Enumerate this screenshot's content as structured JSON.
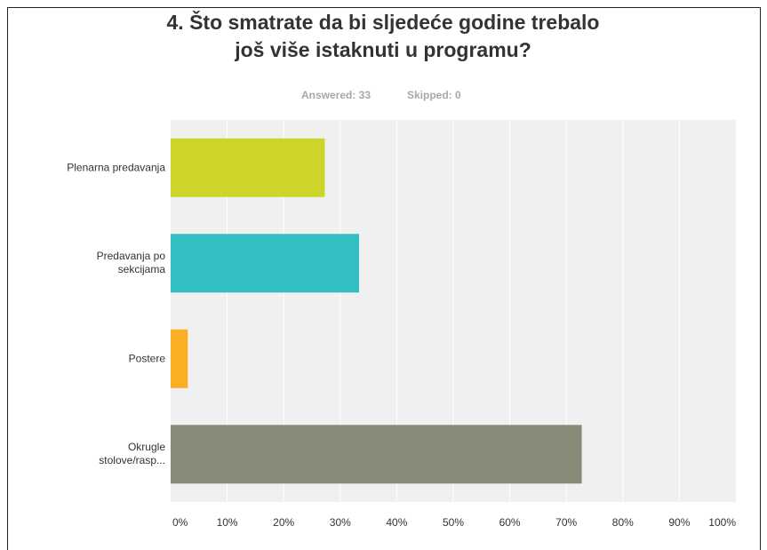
{
  "chart_data": {
    "type": "bar",
    "orientation": "horizontal",
    "title": "4. Što smatrate da bi sljedeće godine trebalo još više istaknuti u programu?",
    "answered": "Answered: 33",
    "skipped": "Skipped: 0",
    "categories": [
      "Plenarna predavanja",
      "Predavanja po sekcijama",
      "Postere",
      "Okrugle stolove/rasp..."
    ],
    "values": [
      27.27,
      33.33,
      3.03,
      72.73
    ],
    "colors": [
      "#cdd42a",
      "#31bfc1",
      "#f9ae24",
      "#8a8a78"
    ],
    "xlim": [
      0,
      100
    ],
    "xticks": [
      {
        "value": 0,
        "label": "0%"
      },
      {
        "value": 10,
        "label": "10%"
      },
      {
        "value": 20,
        "label": "20%"
      },
      {
        "value": 30,
        "label": "30%"
      },
      {
        "value": 40,
        "label": "40%"
      },
      {
        "value": 50,
        "label": "50%"
      },
      {
        "value": 60,
        "label": "60%"
      },
      {
        "value": 70,
        "label": "70%"
      },
      {
        "value": 80,
        "label": "80%"
      },
      {
        "value": 90,
        "label": "90%"
      },
      {
        "value": 100,
        "label": "100%"
      }
    ],
    "grid": true
  }
}
